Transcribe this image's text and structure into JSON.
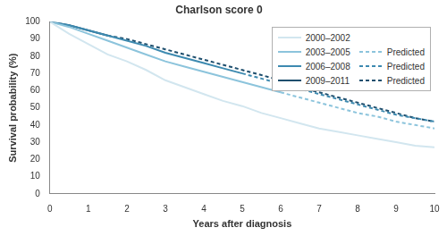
{
  "chart_data": {
    "type": "line",
    "title": "Charlson score 0",
    "x_label": "Years after diagnosis",
    "y_label": "Survival probability (%)",
    "x": [
      0,
      0.5,
      1,
      1.5,
      2,
      2.5,
      3,
      3.5,
      4,
      4.5,
      5,
      5.5,
      6,
      6.5,
      7,
      7.5,
      8,
      8.5,
      9,
      9.5,
      10
    ],
    "series": [
      {
        "name": "2000–2002",
        "color": "#d2e6ef",
        "line_style": "solid",
        "values": [
          100,
          93,
          87,
          81,
          77,
          72,
          66,
          62,
          58,
          54,
          51,
          47,
          44,
          41,
          38,
          36,
          34,
          32,
          30,
          28,
          27
        ]
      },
      {
        "name": "2003–2005",
        "color": "#8cc4dc",
        "line_style": "solid",
        "values": [
          100,
          97,
          93,
          89,
          85,
          81,
          77,
          74,
          71,
          68,
          65,
          62,
          59,
          null,
          null,
          null,
          null,
          null,
          null,
          null,
          null
        ]
      },
      {
        "name": "2006–2008",
        "color": "#3d8ab0",
        "line_style": "solid",
        "values": [
          100,
          98,
          95,
          92,
          89,
          86,
          82,
          79,
          76,
          73,
          70,
          null,
          null,
          null,
          null,
          null,
          null,
          null,
          null,
          null,
          null
        ]
      },
      {
        "name": "2009–2011",
        "color": "#1f4f6e",
        "line_style": "solid",
        "values": [
          100,
          98,
          95,
          92,
          null,
          null,
          null,
          null,
          null,
          null,
          null,
          null,
          null,
          null,
          null,
          null,
          null,
          null,
          null,
          null,
          null
        ]
      },
      {
        "name": "Predicted",
        "color": "#8cc4dc",
        "line_style": "dashed",
        "values": [
          null,
          null,
          null,
          null,
          null,
          null,
          null,
          null,
          null,
          null,
          null,
          null,
          59,
          56,
          53,
          50,
          47,
          45,
          42,
          40,
          38
        ]
      },
      {
        "name": "Predicted",
        "color": "#3d8ab0",
        "line_style": "dashed",
        "values": [
          null,
          null,
          null,
          null,
          null,
          null,
          null,
          null,
          null,
          null,
          70,
          67,
          64,
          61,
          58,
          55,
          52,
          49,
          46,
          44,
          42
        ]
      },
      {
        "name": "Predicted",
        "color": "#1f4f6e",
        "line_style": "dashed",
        "values": [
          null,
          null,
          null,
          92,
          90,
          87,
          84,
          81,
          78,
          75,
          72,
          69,
          66,
          62,
          59,
          56,
          53,
          50,
          47,
          44,
          42
        ]
      }
    ],
    "xlim": [
      0,
      10
    ],
    "xticks": [
      0,
      1,
      2,
      3,
      4,
      5,
      6,
      7,
      8,
      9,
      10
    ],
    "ylim": [
      0,
      100
    ],
    "yticks": [
      0,
      10,
      20,
      30,
      40,
      50,
      60,
      70,
      80,
      90,
      100
    ],
    "grid": false,
    "legend": "top-right"
  }
}
